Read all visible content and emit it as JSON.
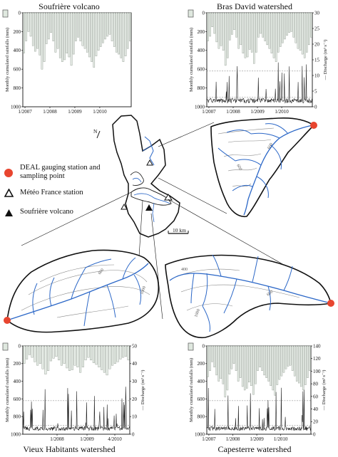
{
  "chart_data": [
    {
      "type": "bar",
      "title": "Soufrière volcano",
      "ylabel": "Monthly cumulated rainfalls (mm)",
      "ylim": [
        0,
        1000
      ],
      "yticks": [
        "0",
        "200",
        "400",
        "600",
        "800",
        "1000"
      ],
      "xticks": [
        "1/2007",
        "1/2008",
        "1/2009",
        "1/2010"
      ],
      "series": [
        {
          "values": [
            430,
            300,
            200,
            250,
            350,
            410,
            380,
            450,
            600,
            520,
            330,
            280,
            210,
            300,
            420,
            380,
            480,
            520,
            500,
            430,
            470,
            560,
            440,
            300,
            260,
            300,
            350,
            380,
            420,
            470,
            520,
            580,
            460,
            400,
            360,
            320,
            280,
            250,
            230,
            300,
            360,
            420,
            440,
            480,
            520,
            460,
            380,
            300
          ]
        }
      ]
    },
    {
      "type": "bar",
      "title": "Bras David watershed",
      "ylabel": "Monthly cumulated rainfalls (mm)",
      "y2label": "Discharge (m³ s⁻¹)",
      "ylim": [
        0,
        1000
      ],
      "y2lim": [
        0,
        30
      ],
      "yticks": [
        "0",
        "200",
        "400",
        "600",
        "800",
        "1000"
      ],
      "y2ticks": [
        "0",
        "5",
        "10",
        "15",
        "20",
        "25",
        "30"
      ],
      "xticks": [
        "1/2007",
        "1/2008",
        "1/2009",
        "1/2010"
      ],
      "series": [
        {
          "values": [
            300,
            250,
            150,
            220,
            310,
            380,
            350,
            400,
            560,
            480,
            290,
            230,
            180,
            260,
            380,
            340,
            430,
            480,
            470,
            390,
            420,
            540,
            420,
            260,
            220,
            260,
            300,
            340,
            380,
            430,
            480,
            520,
            420,
            360,
            320,
            280,
            240,
            210,
            200,
            260,
            320,
            380,
            400,
            440,
            480,
            420,
            340,
            260
          ]
        }
      ]
    },
    {
      "type": "bar",
      "title": "Vieux Habitants watershed",
      "ylabel": "Monthly cumulated rainfalls (mm)",
      "y2label": "Discharge (m³ s⁻¹)",
      "ylim": [
        0,
        1000
      ],
      "y2lim": [
        0,
        50
      ],
      "yticks": [
        "0",
        "200",
        "400",
        "600",
        "800",
        "1000"
      ],
      "y2ticks": [
        "0",
        "10",
        "20",
        "30",
        "40",
        "50"
      ],
      "xticks": [
        "1/2008",
        "1/2009",
        "4/2010"
      ],
      "series": [
        {
          "values": [
            200,
            150,
            100,
            130,
            180,
            220,
            200,
            260,
            320,
            280,
            170,
            140,
            120,
            160,
            220,
            200,
            250,
            280,
            270,
            220,
            240,
            300,
            240,
            160,
            130,
            160,
            190,
            210,
            240,
            270,
            300,
            330,
            260,
            220,
            200,
            180,
            150,
            130,
            120,
            160
          ]
        }
      ]
    },
    {
      "type": "bar",
      "title": "Capesterre watershed",
      "ylabel": "Monthly cumulated rainfalls (mm)",
      "y2label": "Discharge (m³ s⁻¹)",
      "ylim": [
        0,
        1000
      ],
      "y2lim": [
        0,
        140
      ],
      "yticks": [
        "0",
        "200",
        "400",
        "600",
        "800",
        "1000"
      ],
      "y2ticks": [
        "0",
        "20",
        "40",
        "60",
        "80",
        "100",
        "120",
        "140"
      ],
      "xticks": [
        "1/2007",
        "1/2008",
        "1/2009",
        "1/2010"
      ],
      "series": [
        {
          "values": [
            350,
            280,
            180,
            240,
            330,
            400,
            370,
            430,
            580,
            500,
            320,
            260,
            200,
            280,
            400,
            360,
            460,
            500,
            480,
            410,
            450,
            550,
            430,
            280,
            240,
            280,
            330,
            360,
            400,
            450,
            500,
            560,
            440,
            380,
            340,
            300,
            260,
            230,
            220,
            280,
            340,
            400,
            420,
            460,
            500,
            440,
            360,
            280
          ]
        }
      ]
    }
  ],
  "legend": {
    "gauging": "DEAL gauging station and sampling point",
    "meteo": "Météo France station",
    "volcano": "Soufrière volcano"
  },
  "map": {
    "north": "N",
    "scale": "10 km"
  }
}
